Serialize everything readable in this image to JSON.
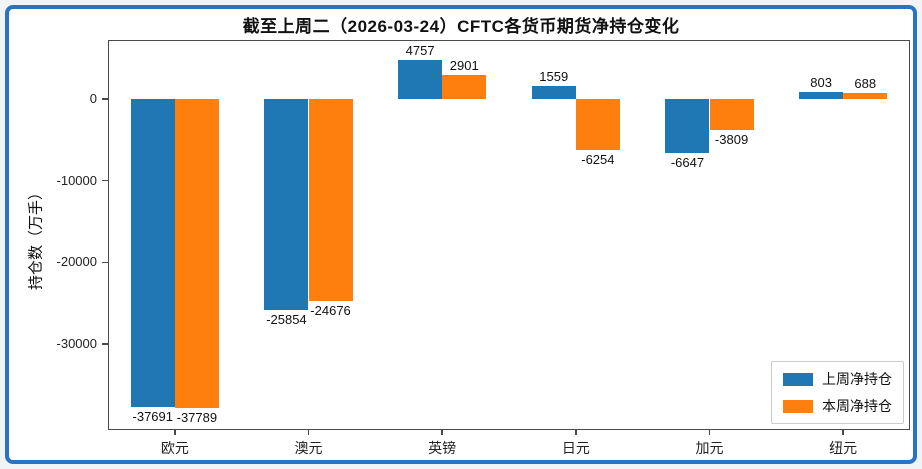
{
  "figure": {
    "title": "截至上周二（2026-03-24）CFTC各货币期货净持仓变化"
  },
  "chart_data": {
    "type": "bar",
    "title": "截至上周二（2026-03-24）CFTC各货币期货净持仓变化",
    "categories": [
      "欧元",
      "澳元",
      "英镑",
      "日元",
      "加元",
      "纽元"
    ],
    "series": [
      {
        "name": "上周净持仓",
        "color": "#1f77b4",
        "values": [
          -37691,
          -25854,
          4757,
          1559,
          -6647,
          803
        ]
      },
      {
        "name": "本周净持仓",
        "color": "#ff7f0e",
        "values": [
          -37789,
          -24676,
          2901,
          -6254,
          -3809,
          688
        ]
      }
    ],
    "bar_value_labels": [
      "-37691",
      "-37789",
      "-25854",
      "-24676",
      "4757",
      "2901",
      "1559",
      "-6254",
      "-6647",
      "-3809",
      "803",
      "688"
    ],
    "xlabel": "",
    "ylabel": "持仓数（万手）",
    "yticks": [
      0,
      -10000,
      -20000,
      -30000
    ],
    "ylim": [
      -40500,
      7200
    ],
    "grid": false,
    "legend_position": "lower right"
  },
  "colors": {
    "bar_blue": "#1f77b4",
    "bar_orange": "#ff7f0e",
    "frame_border": "#2a72c5",
    "spine": "#4a4a4a",
    "outer_background": "#f1f4f7"
  }
}
